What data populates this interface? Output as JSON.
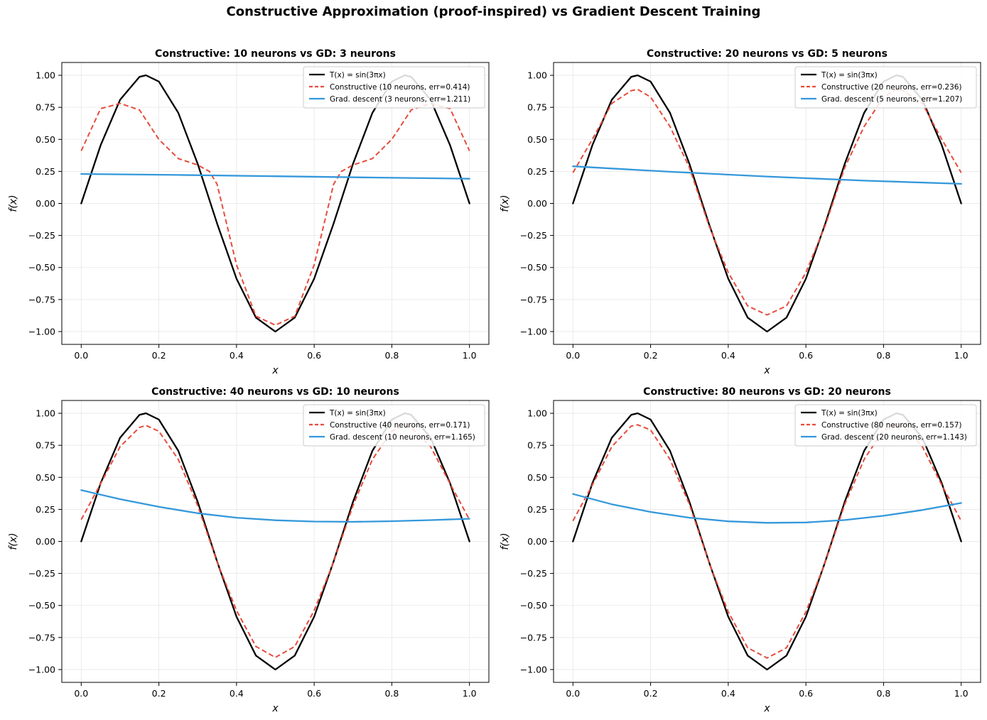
{
  "figure": {
    "title": "Constructive Approximation (proof-inspired) vs Gradient Descent Training",
    "colors": {
      "target": "#000000",
      "constructive": "#e74c3c",
      "gd": "#3498db",
      "grid": "#e6e6e6"
    }
  },
  "chart_data": [
    {
      "type": "line",
      "title": "Constructive: 10 neurons vs GD: 3 neurons",
      "xlabel": "x",
      "ylabel": "f(x)",
      "xlim": [
        -0.05,
        1.05
      ],
      "ylim": [
        -1.1,
        1.1
      ],
      "xticks": [
        "0.0",
        "0.2",
        "0.4",
        "0.6",
        "0.8",
        "1.0"
      ],
      "yticks": [
        "1.00",
        "0.75",
        "0.50",
        "0.25",
        "0.00",
        "−0.25",
        "−0.50",
        "−0.75",
        "−1.00"
      ],
      "grid": true,
      "legend_position": "top-right",
      "series": [
        {
          "name": "T(x) = sin(3πx)",
          "style": "solid",
          "color": "#000000",
          "x": [
            0.0,
            0.05,
            0.1,
            0.15,
            0.1667,
            0.2,
            0.25,
            0.3,
            0.35,
            0.4,
            0.45,
            0.5,
            0.55,
            0.6,
            0.65,
            0.7,
            0.75,
            0.8,
            0.8333,
            0.85,
            0.9,
            0.95,
            1.0
          ],
          "y": [
            0.0,
            0.454,
            0.809,
            0.988,
            1.0,
            0.951,
            0.707,
            0.309,
            -0.156,
            -0.588,
            -0.891,
            -1.0,
            -0.891,
            -0.588,
            -0.156,
            0.309,
            0.707,
            0.951,
            1.0,
            0.988,
            0.809,
            0.454,
            0.0
          ]
        },
        {
          "name": "Constructive (10 neurons, err=0.414)",
          "style": "dashed",
          "color": "#e74c3c",
          "x": [
            0.0,
            0.05,
            0.1,
            0.15,
            0.2,
            0.25,
            0.3,
            0.33,
            0.35,
            0.4,
            0.45,
            0.5,
            0.55,
            0.6,
            0.65,
            0.67,
            0.7,
            0.75,
            0.8,
            0.85,
            0.9,
            0.95,
            1.0
          ],
          "y": [
            0.41,
            0.74,
            0.78,
            0.73,
            0.5,
            0.35,
            0.3,
            0.25,
            0.15,
            -0.48,
            -0.88,
            -0.95,
            -0.88,
            -0.48,
            0.15,
            0.25,
            0.3,
            0.35,
            0.5,
            0.73,
            0.78,
            0.74,
            0.41
          ]
        },
        {
          "name": "Grad. descent (3 neurons, err=1.211)",
          "style": "solid",
          "color": "#3498db",
          "x": [
            0.0,
            0.25,
            0.5,
            0.75,
            1.0
          ],
          "y": [
            0.23,
            0.222,
            0.212,
            0.202,
            0.193
          ]
        }
      ]
    },
    {
      "type": "line",
      "title": "Constructive: 20 neurons vs GD: 5 neurons",
      "xlabel": "x",
      "ylabel": "f(x)",
      "xlim": [
        -0.05,
        1.05
      ],
      "ylim": [
        -1.1,
        1.1
      ],
      "xticks": [
        "0.0",
        "0.2",
        "0.4",
        "0.6",
        "0.8",
        "1.0"
      ],
      "yticks": [
        "1.00",
        "0.75",
        "0.50",
        "0.25",
        "0.00",
        "−0.25",
        "−0.50",
        "−0.75",
        "−1.00"
      ],
      "grid": true,
      "legend_position": "top-right",
      "series": [
        {
          "name": "T(x) = sin(3πx)",
          "style": "solid",
          "color": "#000000",
          "x": [
            0.0,
            0.05,
            0.1,
            0.15,
            0.1667,
            0.2,
            0.25,
            0.3,
            0.35,
            0.4,
            0.45,
            0.5,
            0.55,
            0.6,
            0.65,
            0.7,
            0.75,
            0.8,
            0.8333,
            0.85,
            0.9,
            0.95,
            1.0
          ],
          "y": [
            0.0,
            0.454,
            0.809,
            0.988,
            1.0,
            0.951,
            0.707,
            0.309,
            -0.156,
            -0.588,
            -0.891,
            -1.0,
            -0.891,
            -0.588,
            -0.156,
            0.309,
            0.707,
            0.951,
            1.0,
            0.988,
            0.809,
            0.454,
            0.0
          ]
        },
        {
          "name": "Constructive (20 neurons, err=0.236)",
          "style": "dashed",
          "color": "#e74c3c",
          "x": [
            0.0,
            0.05,
            0.1,
            0.15,
            0.1667,
            0.2,
            0.25,
            0.3,
            0.35,
            0.4,
            0.45,
            0.5,
            0.55,
            0.6,
            0.65,
            0.7,
            0.75,
            0.8,
            0.8333,
            0.85,
            0.9,
            0.95,
            1.0
          ],
          "y": [
            0.24,
            0.5,
            0.78,
            0.88,
            0.89,
            0.83,
            0.6,
            0.28,
            -0.17,
            -0.54,
            -0.8,
            -0.87,
            -0.8,
            -0.54,
            -0.17,
            0.28,
            0.6,
            0.83,
            0.89,
            0.88,
            0.78,
            0.5,
            0.24
          ]
        },
        {
          "name": "Grad. descent (5 neurons, err=1.207)",
          "style": "solid",
          "color": "#3498db",
          "x": [
            0.0,
            0.25,
            0.5,
            0.75,
            1.0
          ],
          "y": [
            0.29,
            0.247,
            0.21,
            0.178,
            0.153
          ]
        }
      ]
    },
    {
      "type": "line",
      "title": "Constructive: 40 neurons vs GD: 10 neurons",
      "xlabel": "x",
      "ylabel": "f(x)",
      "xlim": [
        -0.05,
        1.05
      ],
      "ylim": [
        -1.1,
        1.1
      ],
      "xticks": [
        "0.0",
        "0.2",
        "0.4",
        "0.6",
        "0.8",
        "1.0"
      ],
      "yticks": [
        "1.00",
        "0.75",
        "0.50",
        "0.25",
        "0.00",
        "−0.25",
        "−0.50",
        "−0.75",
        "−1.00"
      ],
      "grid": true,
      "legend_position": "top-right",
      "series": [
        {
          "name": "T(x) = sin(3πx)",
          "style": "solid",
          "color": "#000000",
          "x": [
            0.0,
            0.05,
            0.1,
            0.15,
            0.1667,
            0.2,
            0.25,
            0.3,
            0.35,
            0.4,
            0.45,
            0.5,
            0.55,
            0.6,
            0.65,
            0.7,
            0.75,
            0.8,
            0.8333,
            0.85,
            0.9,
            0.95,
            1.0
          ],
          "y": [
            0.0,
            0.454,
            0.809,
            0.988,
            1.0,
            0.951,
            0.707,
            0.309,
            -0.156,
            -0.588,
            -0.891,
            -1.0,
            -0.891,
            -0.588,
            -0.156,
            0.309,
            0.707,
            0.951,
            1.0,
            0.988,
            0.809,
            0.454,
            0.0
          ]
        },
        {
          "name": "Constructive (40 neurons, err=0.171)",
          "style": "dashed",
          "color": "#e74c3c",
          "x": [
            0.0,
            0.05,
            0.1,
            0.15,
            0.1667,
            0.2,
            0.25,
            0.3,
            0.35,
            0.4,
            0.45,
            0.5,
            0.55,
            0.6,
            0.65,
            0.7,
            0.75,
            0.8,
            0.8333,
            0.85,
            0.9,
            0.95,
            1.0
          ],
          "y": [
            0.17,
            0.45,
            0.74,
            0.89,
            0.905,
            0.86,
            0.64,
            0.28,
            -0.16,
            -0.54,
            -0.82,
            -0.905,
            -0.82,
            -0.54,
            -0.16,
            0.28,
            0.64,
            0.86,
            0.905,
            0.89,
            0.74,
            0.45,
            0.17
          ]
        },
        {
          "name": "Grad. descent (10 neurons, err=1.165)",
          "style": "solid",
          "color": "#3498db",
          "x": [
            0.0,
            0.1,
            0.2,
            0.3,
            0.4,
            0.5,
            0.6,
            0.7,
            0.8,
            0.9,
            1.0
          ],
          "y": [
            0.4,
            0.33,
            0.27,
            0.22,
            0.185,
            0.165,
            0.155,
            0.153,
            0.158,
            0.166,
            0.177
          ]
        }
      ]
    },
    {
      "type": "line",
      "title": "Constructive: 80 neurons vs GD: 20 neurons",
      "xlabel": "x",
      "ylabel": "f(x)",
      "xlim": [
        -0.05,
        1.05
      ],
      "ylim": [
        -1.1,
        1.1
      ],
      "xticks": [
        "0.0",
        "0.2",
        "0.4",
        "0.6",
        "0.8",
        "1.0"
      ],
      "yticks": [
        "1.00",
        "0.75",
        "0.50",
        "0.25",
        "0.00",
        "−0.25",
        "−0.50",
        "−0.75",
        "−1.00"
      ],
      "grid": true,
      "legend_position": "top-right",
      "series": [
        {
          "name": "T(x) = sin(3πx)",
          "style": "solid",
          "color": "#000000",
          "x": [
            0.0,
            0.05,
            0.1,
            0.15,
            0.1667,
            0.2,
            0.25,
            0.3,
            0.35,
            0.4,
            0.45,
            0.5,
            0.55,
            0.6,
            0.65,
            0.7,
            0.75,
            0.8,
            0.8333,
            0.85,
            0.9,
            0.95,
            1.0
          ],
          "y": [
            0.0,
            0.454,
            0.809,
            0.988,
            1.0,
            0.951,
            0.707,
            0.309,
            -0.156,
            -0.588,
            -0.891,
            -1.0,
            -0.891,
            -0.588,
            -0.156,
            0.309,
            0.707,
            0.951,
            1.0,
            0.988,
            0.809,
            0.454,
            0.0
          ]
        },
        {
          "name": "Constructive (80 neurons, err=0.157)",
          "style": "dashed",
          "color": "#e74c3c",
          "x": [
            0.0,
            0.05,
            0.1,
            0.15,
            0.1667,
            0.2,
            0.25,
            0.3,
            0.35,
            0.4,
            0.45,
            0.5,
            0.55,
            0.6,
            0.65,
            0.7,
            0.75,
            0.8,
            0.8333,
            0.85,
            0.9,
            0.95,
            1.0
          ],
          "y": [
            0.16,
            0.44,
            0.74,
            0.9,
            0.91,
            0.87,
            0.64,
            0.29,
            -0.16,
            -0.55,
            -0.83,
            -0.91,
            -0.83,
            -0.55,
            -0.16,
            0.29,
            0.64,
            0.87,
            0.91,
            0.9,
            0.74,
            0.44,
            0.16
          ]
        },
        {
          "name": "Grad. descent (20 neurons, err=1.143)",
          "style": "solid",
          "color": "#3498db",
          "x": [
            0.0,
            0.1,
            0.2,
            0.3,
            0.4,
            0.5,
            0.6,
            0.7,
            0.8,
            0.9,
            1.0
          ],
          "y": [
            0.37,
            0.29,
            0.23,
            0.185,
            0.157,
            0.145,
            0.148,
            0.167,
            0.2,
            0.245,
            0.3
          ]
        }
      ]
    }
  ]
}
